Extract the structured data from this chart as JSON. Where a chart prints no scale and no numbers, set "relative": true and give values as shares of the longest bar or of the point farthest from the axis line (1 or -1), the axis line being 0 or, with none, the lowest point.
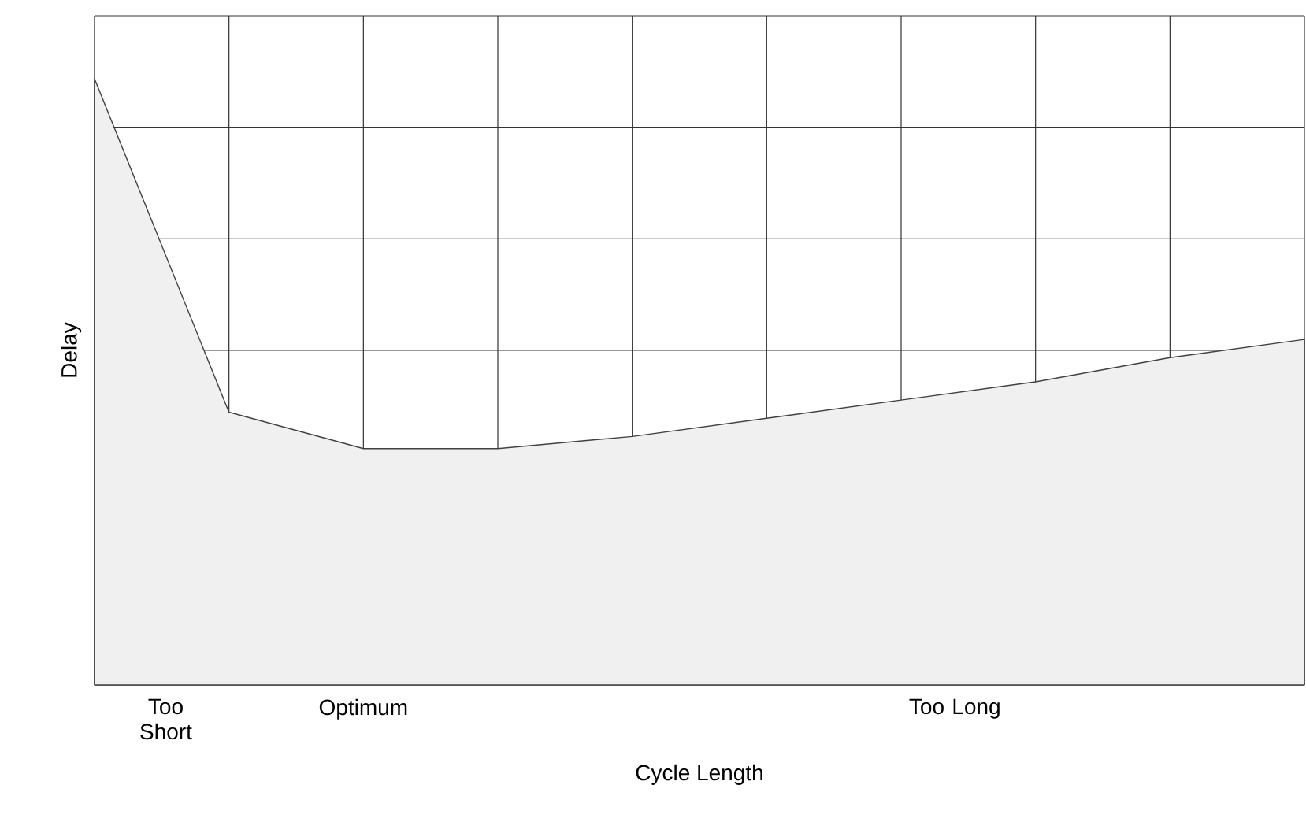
{
  "chart_data": {
    "type": "area",
    "relative": true,
    "xlabel": "Cycle Length",
    "ylabel": "Delay",
    "categories": [
      null,
      null,
      null,
      null,
      null,
      null,
      null,
      null,
      null,
      null
    ],
    "series": [
      {
        "color": "#f0f0f0",
        "values": [
          1.0,
          0.45,
          0.39,
          0.39,
          0.41,
          0.44,
          0.47,
          0.5,
          0.54,
          0.57
        ]
      }
    ],
    "grid": true,
    "annotations": [
      "Too Short",
      "Optimum",
      "Too Long"
    ]
  }
}
